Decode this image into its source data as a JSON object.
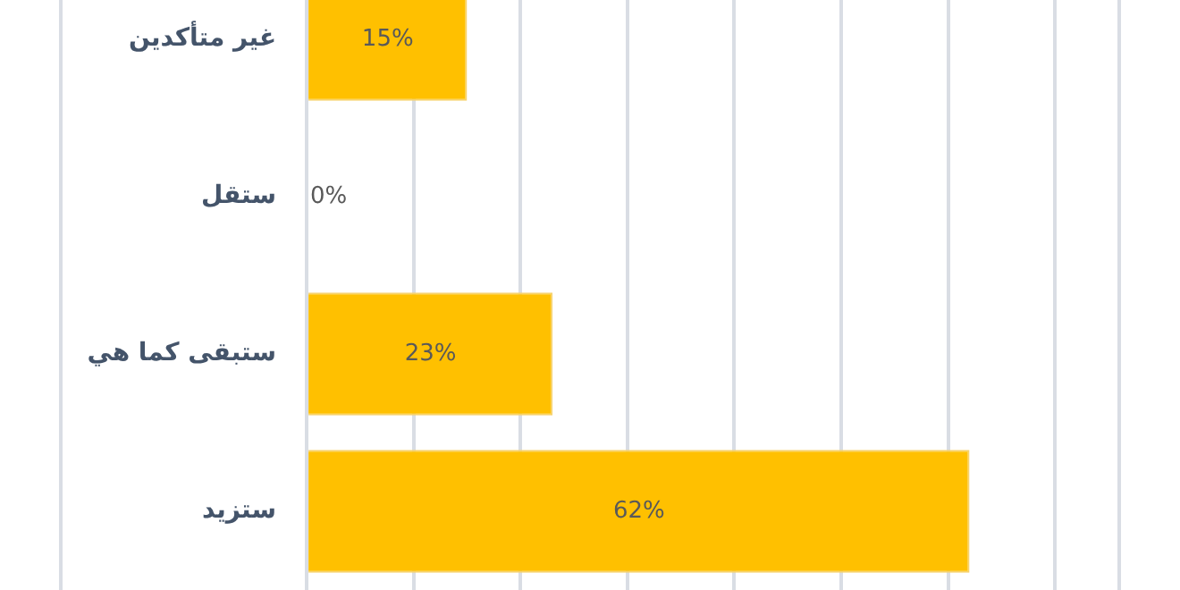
{
  "chart_data": {
    "type": "bar",
    "orientation": "horizontal",
    "categories": [
      "غير متأكدين",
      "ستقل",
      "ستبقى كما هي",
      "ستزيد"
    ],
    "values": [
      15,
      0,
      23,
      62
    ],
    "value_labels": [
      "15%",
      "0%",
      "23%",
      "62%"
    ],
    "color": "#ffc000",
    "xlim": [
      -23,
      76
    ],
    "xticks": [
      {
        "value": -23,
        "label": null
      },
      {
        "value": 0,
        "label": null
      },
      {
        "value": 10,
        "label": null
      },
      {
        "value": 20,
        "label": null
      },
      {
        "value": 30,
        "label": null
      },
      {
        "value": 40,
        "label": null
      },
      {
        "value": 50,
        "label": null
      },
      {
        "value": 60,
        "label": null
      },
      {
        "value": 70,
        "label": null
      },
      {
        "value": 76,
        "label": null
      }
    ],
    "grid": "x",
    "tick_labels": "y"
  }
}
